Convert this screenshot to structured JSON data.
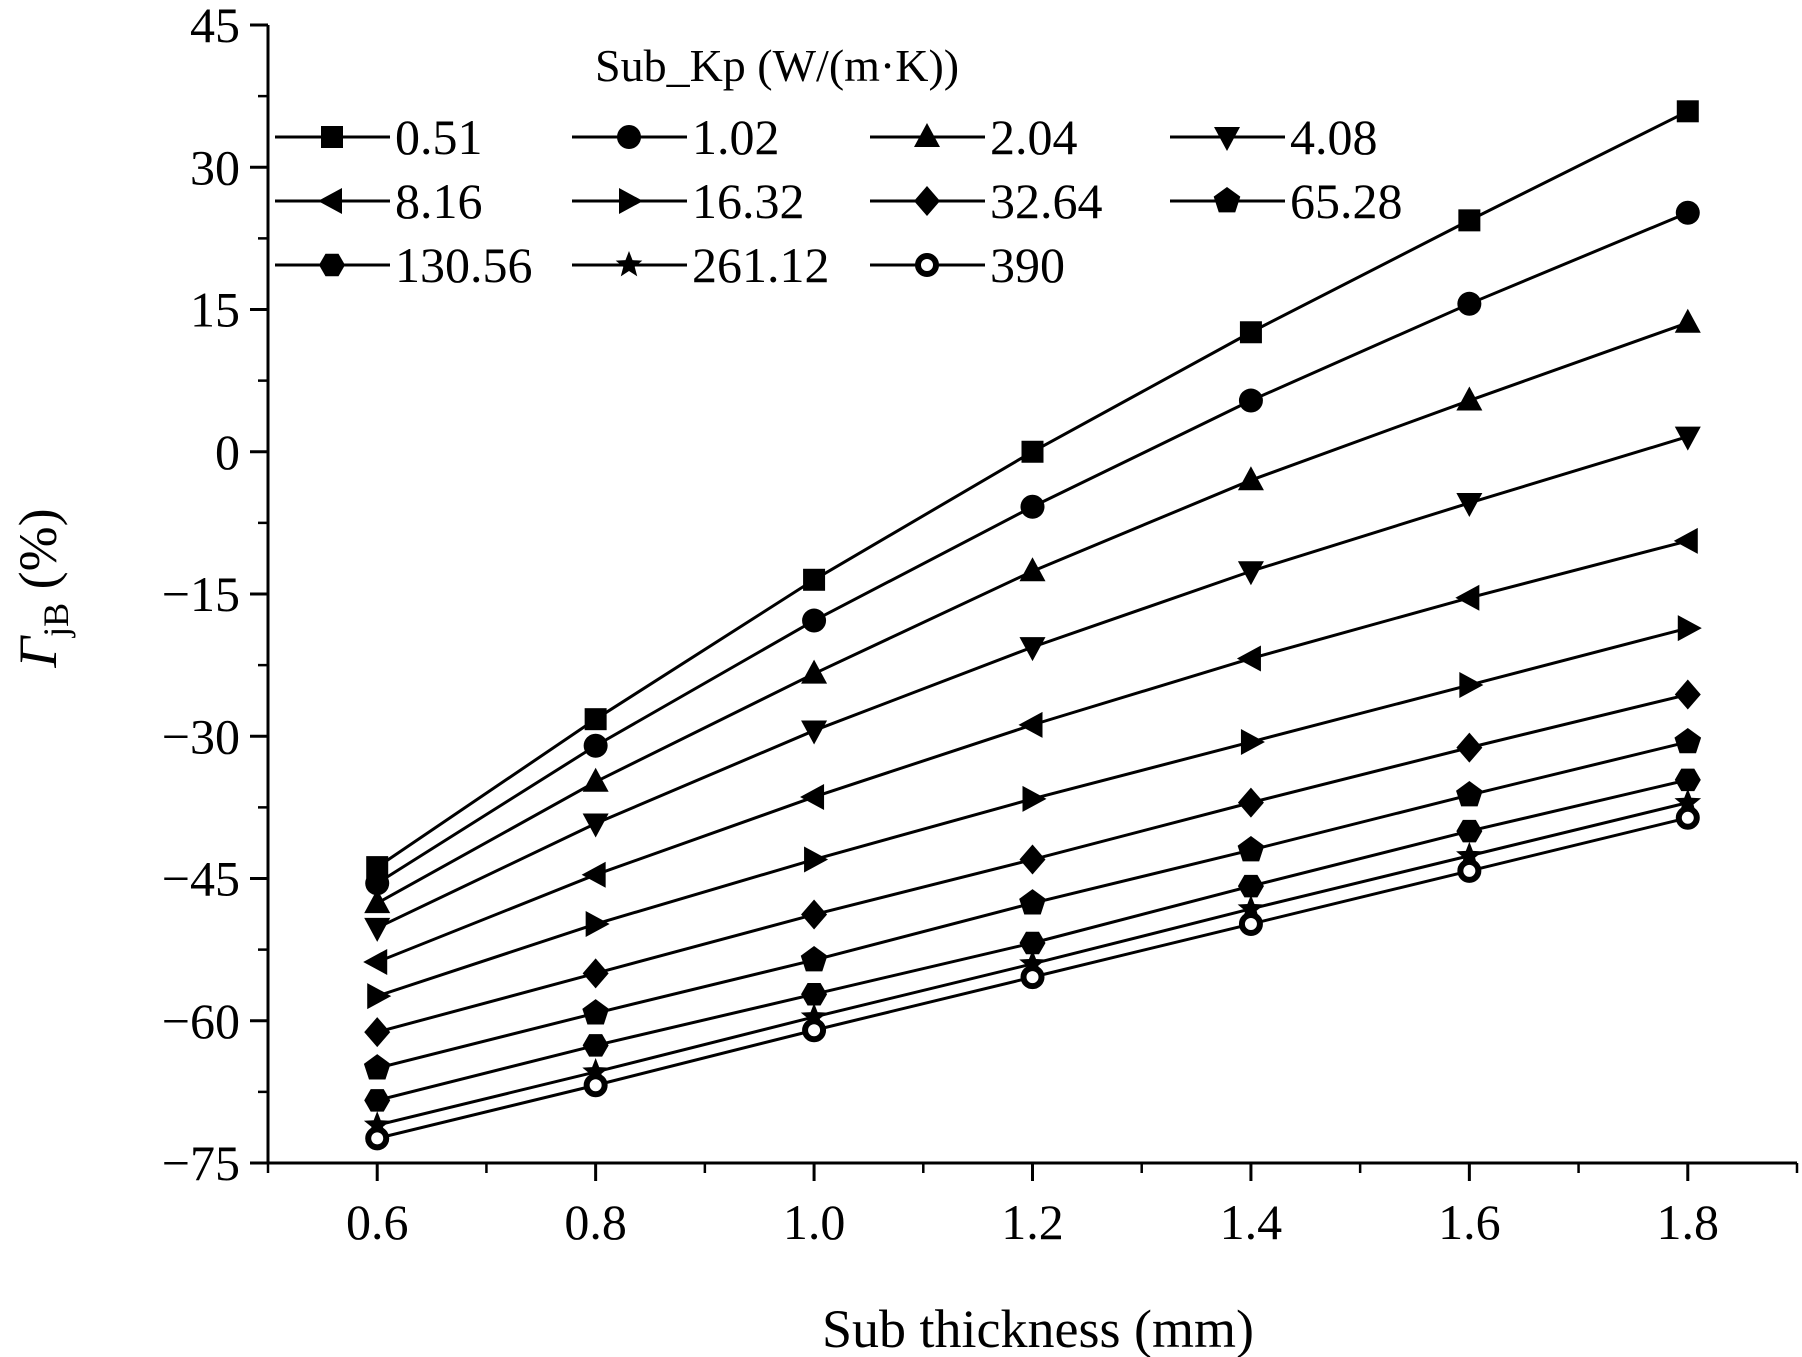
{
  "chart_data": {
    "type": "line",
    "xlabel": "Sub thickness (mm)",
    "ylabel": {
      "symbol": "Γ",
      "subscript": "jB",
      "unit": "(%)"
    },
    "legend_title": "Sub_Kp (W/(m·K))",
    "legend_placement": "top-left",
    "grid": false,
    "xlim": [
      0.5,
      1.9
    ],
    "ylim": [
      -75,
      45
    ],
    "x_ticks": [
      0.6,
      0.8,
      1.0,
      1.2,
      1.4,
      1.6,
      1.8
    ],
    "x_tick_labels": [
      "0.6",
      "0.8",
      "1.0",
      "1.2",
      "1.4",
      "1.6",
      "1.8"
    ],
    "y_ticks": [
      -75,
      -60,
      -45,
      -30,
      -15,
      0,
      15,
      30,
      45
    ],
    "y_tick_labels": [
      "−75",
      "−60",
      "−45",
      "−30",
      "−15",
      "0",
      "15",
      "30",
      "45"
    ],
    "x": [
      0.6,
      0.8,
      1.0,
      1.2,
      1.4,
      1.6,
      1.8
    ],
    "series": [
      {
        "name": "0.51",
        "marker": "square",
        "values": [
          -43.8,
          -28.2,
          -13.5,
          0,
          12.6,
          24.4,
          35.9
        ]
      },
      {
        "name": "1.02",
        "marker": "circle",
        "values": [
          -45.5,
          -31.0,
          -17.8,
          -5.8,
          5.4,
          15.6,
          25.2
        ]
      },
      {
        "name": "2.04",
        "marker": "triangle-up",
        "values": [
          -47.6,
          -34.8,
          -23.4,
          -12.6,
          -3.0,
          5.4,
          13.6
        ]
      },
      {
        "name": "4.08",
        "marker": "triangle-down",
        "values": [
          -50.2,
          -39.2,
          -29.4,
          -20.6,
          -12.6,
          -5.4,
          1.6
        ]
      },
      {
        "name": "8.16",
        "marker": "triangle-left",
        "values": [
          -53.8,
          -44.6,
          -36.4,
          -28.8,
          -21.8,
          -15.4,
          -9.4
        ]
      },
      {
        "name": "16.32",
        "marker": "triangle-right",
        "values": [
          -57.4,
          -49.8,
          -43.0,
          -36.6,
          -30.6,
          -24.6,
          -18.6
        ]
      },
      {
        "name": "32.64",
        "marker": "diamond",
        "values": [
          -61.2,
          -55.0,
          -48.8,
          -43.0,
          -37.0,
          -31.2,
          -25.6
        ]
      },
      {
        "name": "65.28",
        "marker": "pentagon",
        "values": [
          -65.0,
          -59.2,
          -53.6,
          -47.6,
          -42.0,
          -36.2,
          -30.6
        ]
      },
      {
        "name": "130.56",
        "marker": "hexagon",
        "values": [
          -68.4,
          -62.6,
          -57.2,
          -51.8,
          -45.8,
          -40.0,
          -34.6
        ]
      },
      {
        "name": "261.12",
        "marker": "star",
        "values": [
          -71.0,
          -65.4,
          -59.6,
          -54.0,
          -48.2,
          -42.6,
          -37.0
        ]
      },
      {
        "name": "390",
        "marker": "open-circle",
        "values": [
          -72.4,
          -66.8,
          -61.0,
          -55.4,
          -49.8,
          -44.2,
          -38.6
        ]
      }
    ]
  }
}
